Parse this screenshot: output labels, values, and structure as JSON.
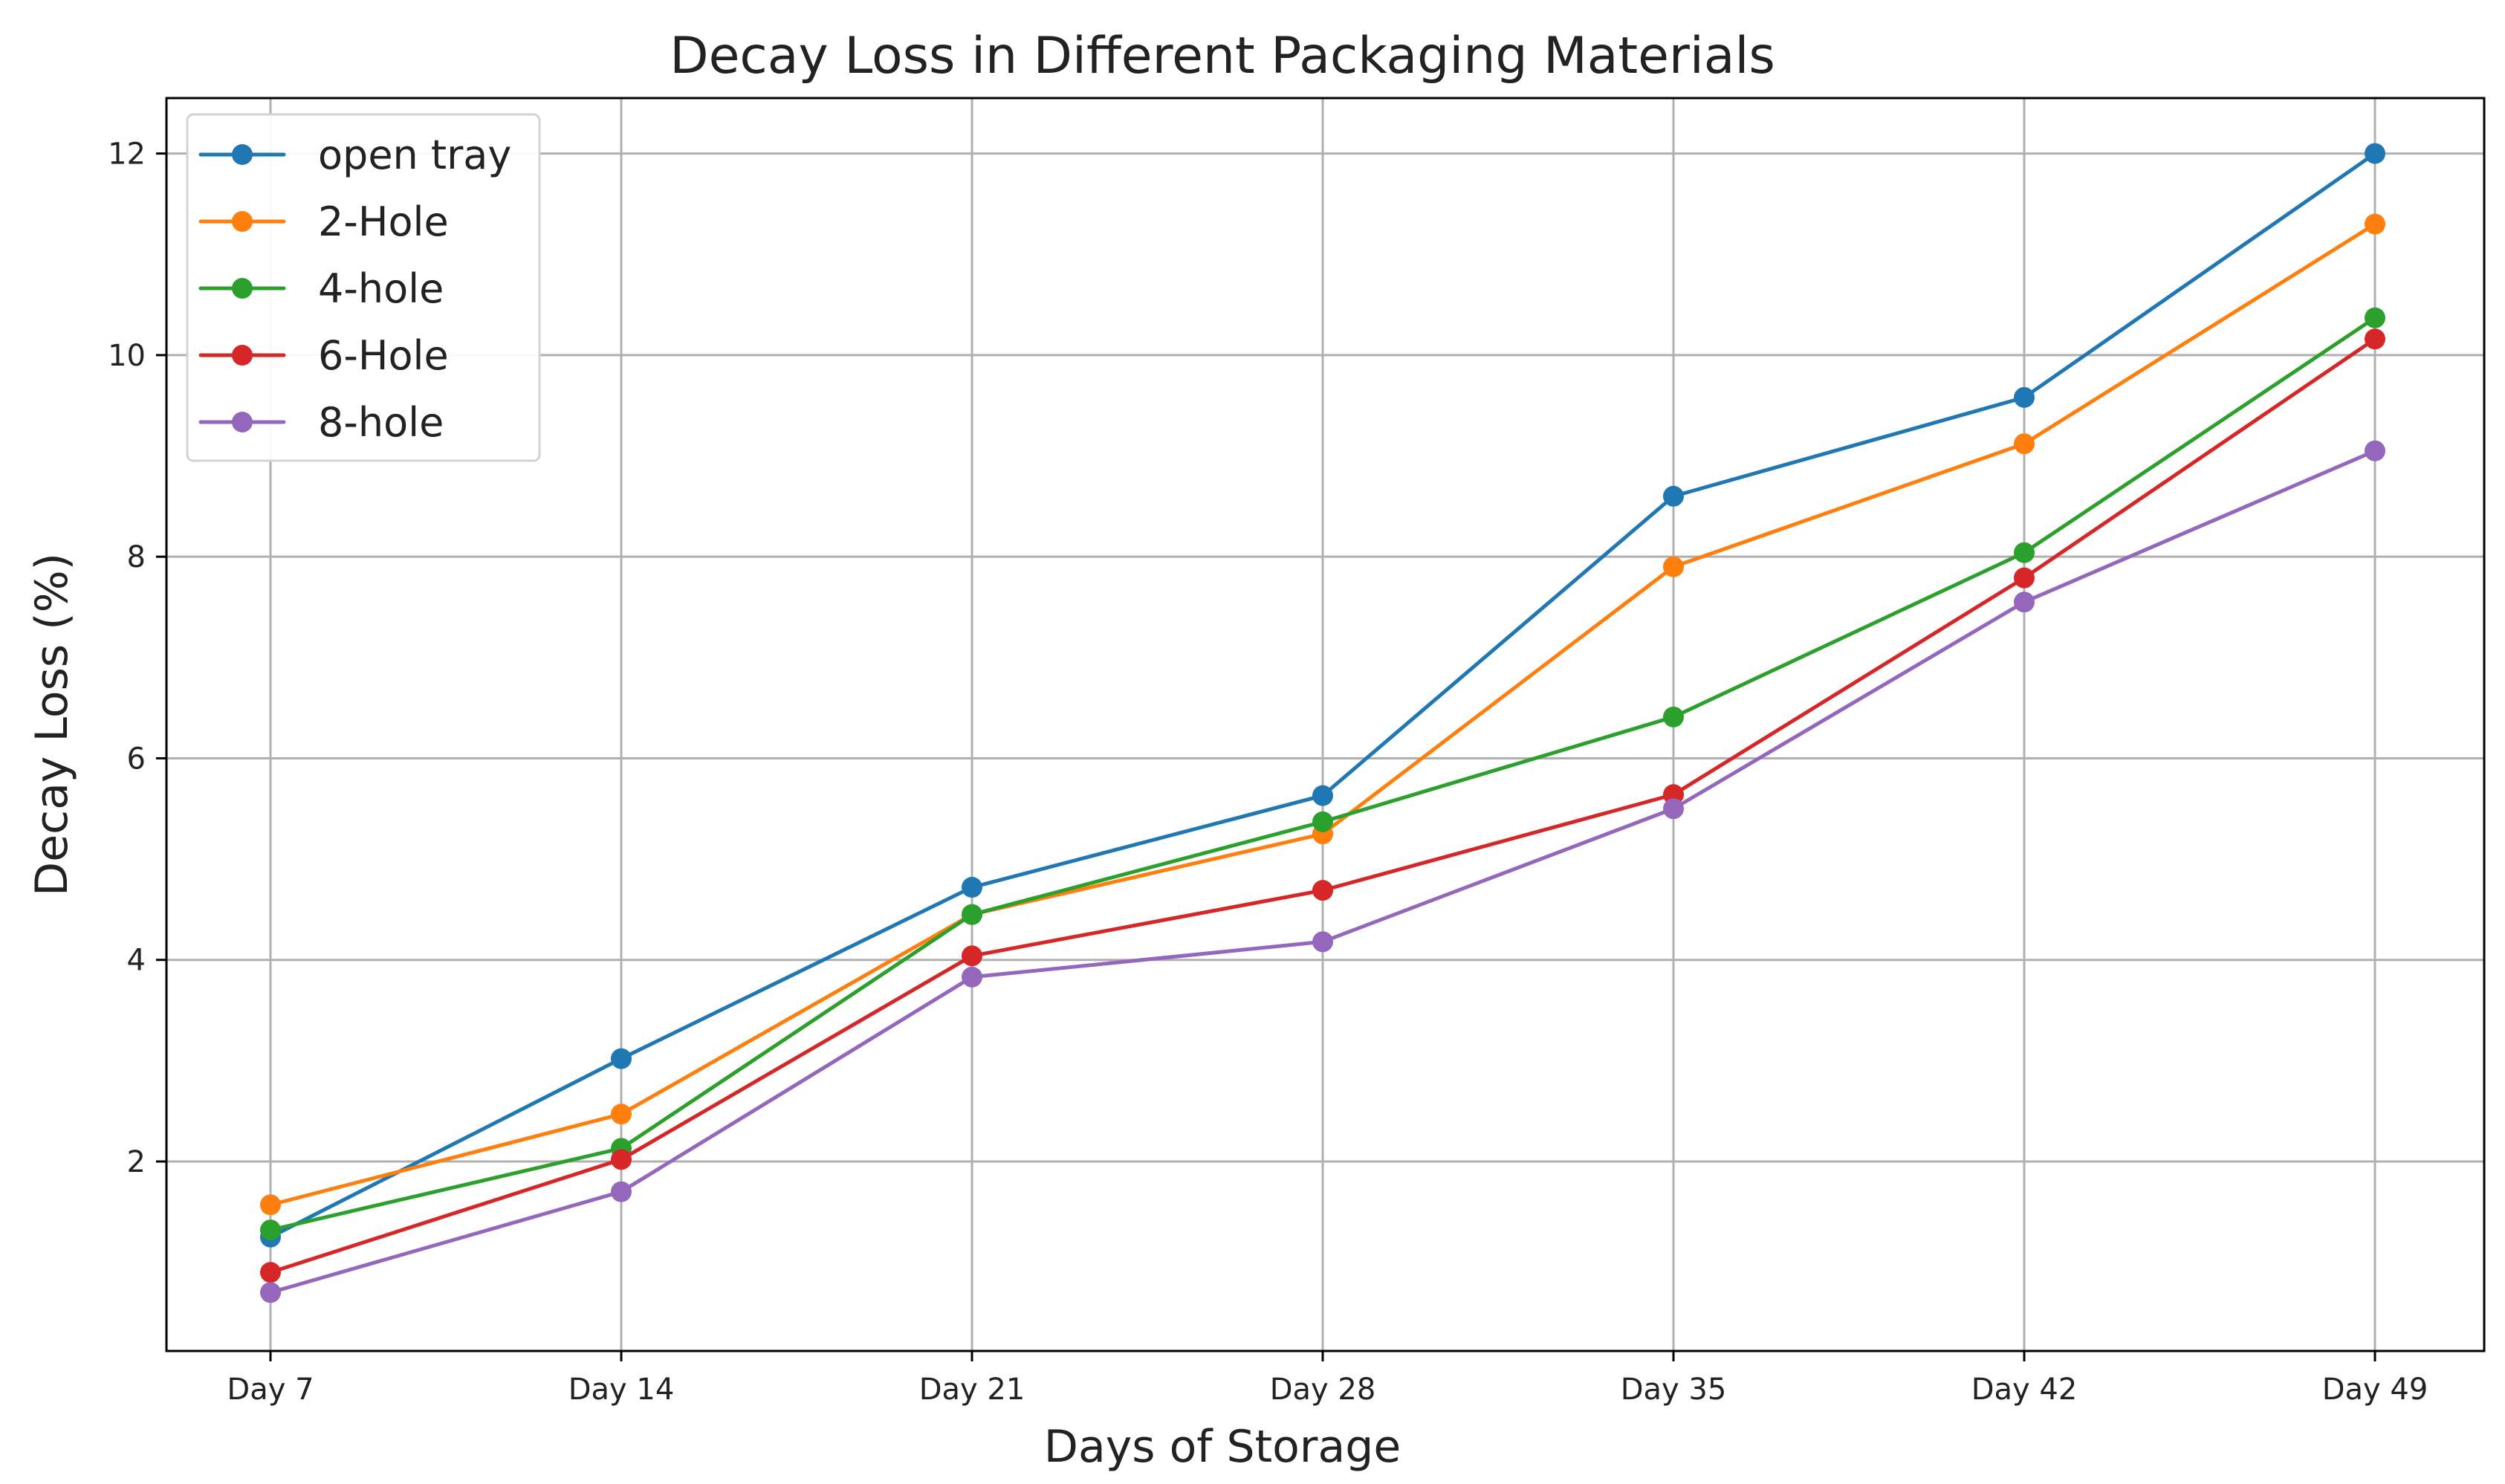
{
  "chart_data": {
    "type": "line",
    "title": "Decay Loss in Different Packaging Materials",
    "xlabel": "Days of Storage",
    "ylabel": "Decay Loss (%)",
    "categories": [
      "Day 7",
      "Day 14",
      "Day 21",
      "Day 28",
      "Day 35",
      "Day 42",
      "Day 49"
    ],
    "ylim": [
      0.12,
      12.55
    ],
    "yticks": [
      2,
      4,
      6,
      8,
      10,
      12
    ],
    "grid": true,
    "legend_position": "top-left",
    "series": [
      {
        "name": "open tray",
        "color": "#1f77b4",
        "values": [
          1.25,
          3.02,
          4.72,
          5.63,
          8.6,
          9.58,
          12.0
        ]
      },
      {
        "name": "2-Hole",
        "color": "#ff7f0e",
        "values": [
          1.57,
          2.47,
          4.45,
          5.25,
          7.9,
          9.12,
          11.3
        ]
      },
      {
        "name": "4-hole",
        "color": "#2ca02c",
        "values": [
          1.32,
          2.13,
          4.45,
          5.37,
          6.41,
          8.04,
          10.37
        ]
      },
      {
        "name": "6-Hole",
        "color": "#d62728",
        "values": [
          0.9,
          2.02,
          4.04,
          4.69,
          5.64,
          7.79,
          10.16
        ]
      },
      {
        "name": "8-hole",
        "color": "#9467bd",
        "values": [
          0.7,
          1.7,
          3.83,
          4.18,
          5.5,
          7.55,
          9.05
        ]
      }
    ]
  }
}
